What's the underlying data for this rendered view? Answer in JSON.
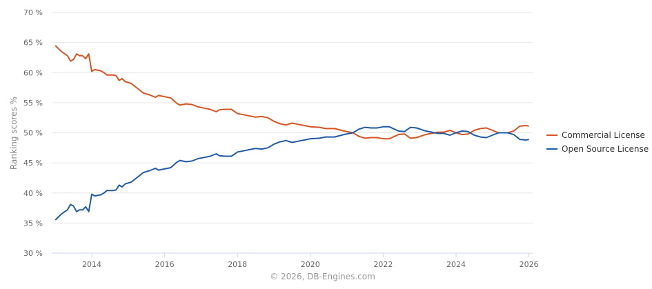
{
  "chart_data": {
    "type": "line",
    "ylabel": "Ranking scores %",
    "ylim": [
      30,
      70
    ],
    "yticks": [
      "30 %",
      "35 %",
      "40 %",
      "45 %",
      "50 %",
      "55 %",
      "60 %",
      "65 %",
      "70 %"
    ],
    "ytick_values": [
      30,
      35,
      40,
      45,
      50,
      55,
      60,
      65,
      70
    ],
    "xticks": [
      "2014",
      "2016",
      "2018",
      "2020",
      "2022",
      "2024",
      "2026"
    ],
    "grid": true,
    "legend_position": "right",
    "x": [
      "2013-01",
      "2013-03",
      "2013-05",
      "2013-06",
      "2013-07",
      "2013-08",
      "2013-09",
      "2013-10",
      "2013-11",
      "2013-12",
      "2014-01",
      "2014-02",
      "2014-04",
      "2014-05",
      "2014-06",
      "2014-08",
      "2014-09",
      "2014-10",
      "2014-11",
      "2014-12",
      "2015-02",
      "2015-04",
      "2015-06",
      "2015-08",
      "2015-10",
      "2015-11",
      "2016-01",
      "2016-03",
      "2016-05",
      "2016-06",
      "2016-08",
      "2016-10",
      "2016-12",
      "2017-02",
      "2017-04",
      "2017-06",
      "2017-07",
      "2017-09",
      "2017-11",
      "2018-01",
      "2018-03",
      "2018-05",
      "2018-07",
      "2018-09",
      "2018-11",
      "2019-01",
      "2019-03",
      "2019-05",
      "2019-07",
      "2019-09",
      "2019-11",
      "2020-01",
      "2020-04",
      "2020-06",
      "2020-09",
      "2020-12",
      "2021-03",
      "2021-05",
      "2021-07",
      "2021-09",
      "2021-11",
      "2022-01",
      "2022-03",
      "2022-06",
      "2022-08",
      "2022-10",
      "2022-12",
      "2023-03",
      "2023-05",
      "2023-07",
      "2023-09",
      "2023-11",
      "2024-01",
      "2024-03",
      "2024-05",
      "2024-07",
      "2024-09",
      "2024-11",
      "2025-01",
      "2025-03",
      "2025-06",
      "2025-08",
      "2025-10",
      "2025-12",
      "2026-01"
    ],
    "series": [
      {
        "name": "Commercial License",
        "color": "#d9531e",
        "values": [
          64.5,
          63.5,
          62.8,
          61.9,
          62.2,
          63.1,
          62.8,
          62.8,
          62.3,
          63.1,
          60.2,
          60.5,
          60.3,
          60.0,
          59.6,
          59.6,
          59.5,
          58.7,
          59.0,
          58.5,
          58.2,
          57.4,
          56.6,
          56.3,
          55.9,
          56.2,
          56.0,
          55.8,
          54.9,
          54.6,
          54.8,
          54.7,
          54.3,
          54.1,
          53.9,
          53.5,
          53.8,
          53.9,
          53.9,
          53.2,
          53.0,
          52.8,
          52.6,
          52.7,
          52.5,
          51.9,
          51.5,
          51.3,
          51.6,
          51.4,
          51.2,
          51.0,
          50.9,
          50.7,
          50.7,
          50.3,
          50.0,
          49.4,
          49.1,
          49.2,
          49.2,
          49.0,
          49.0,
          49.7,
          49.8,
          49.1,
          49.2,
          49.7,
          49.9,
          50.1,
          50.1,
          50.4,
          50.0,
          49.7,
          49.8,
          50.4,
          50.7,
          50.8,
          50.4,
          50.0,
          50.0,
          50.3,
          51.1,
          51.2,
          51.1
        ]
      },
      {
        "name": "Open Source License",
        "color": "#1f5aa6",
        "values": [
          35.5,
          36.5,
          37.2,
          38.1,
          37.8,
          36.9,
          37.2,
          37.2,
          37.7,
          36.9,
          39.8,
          39.5,
          39.7,
          40.0,
          40.4,
          40.4,
          40.5,
          41.3,
          41.0,
          41.5,
          41.8,
          42.6,
          43.4,
          43.7,
          44.1,
          43.8,
          44.0,
          44.2,
          45.1,
          45.4,
          45.2,
          45.3,
          45.7,
          45.9,
          46.1,
          46.5,
          46.2,
          46.1,
          46.1,
          46.8,
          47.0,
          47.2,
          47.4,
          47.3,
          47.5,
          48.1,
          48.5,
          48.7,
          48.4,
          48.6,
          48.8,
          49.0,
          49.1,
          49.3,
          49.3,
          49.7,
          50.0,
          50.6,
          50.9,
          50.8,
          50.8,
          51.0,
          51.0,
          50.3,
          50.2,
          50.9,
          50.8,
          50.3,
          50.1,
          49.9,
          49.9,
          49.6,
          50.0,
          50.3,
          50.2,
          49.6,
          49.3,
          49.2,
          49.6,
          50.0,
          50.0,
          49.7,
          48.9,
          48.8,
          48.9
        ]
      }
    ]
  },
  "credit": "© 2026, DB-Engines.com"
}
